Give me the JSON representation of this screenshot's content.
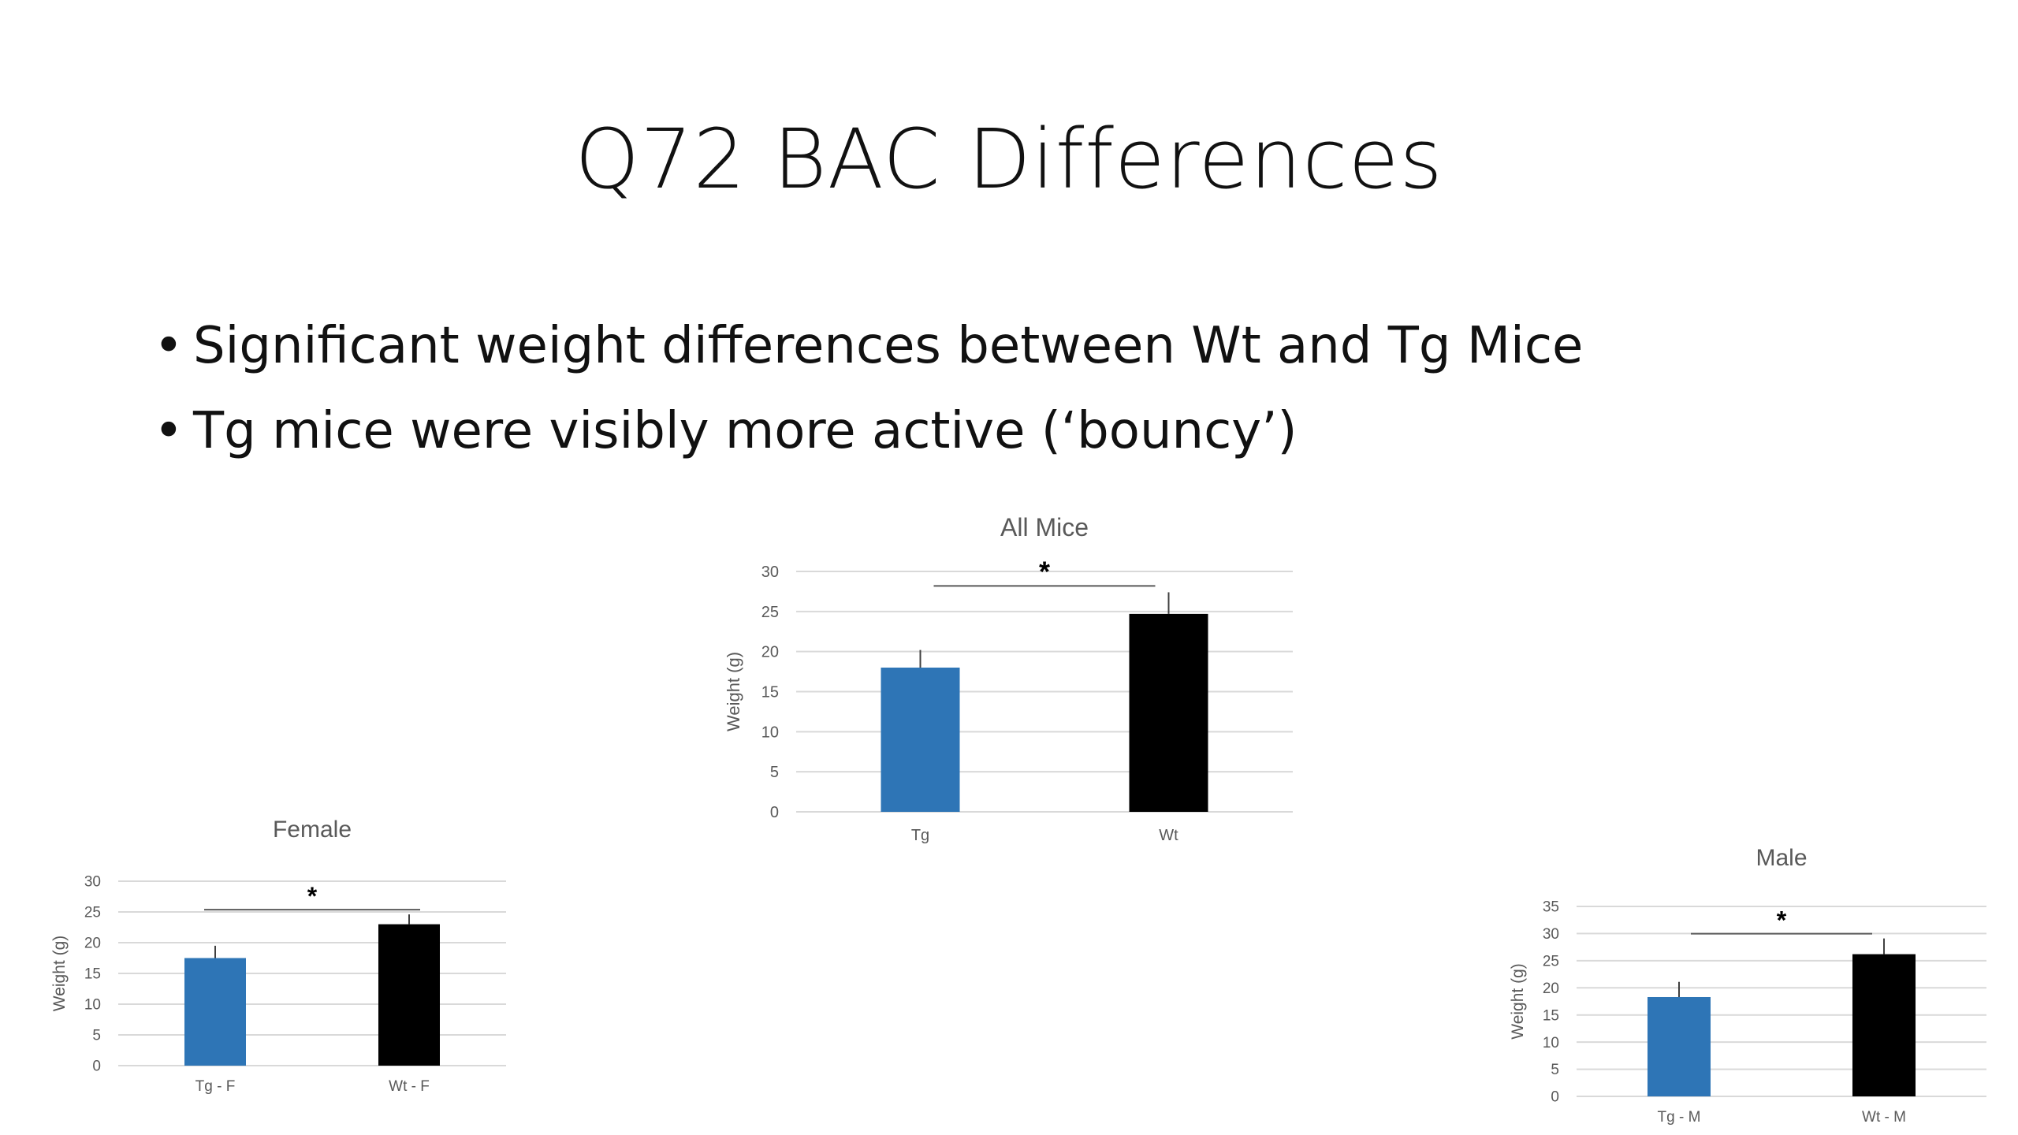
{
  "slide": {
    "title": "Q72 BAC Differences",
    "bullets": [
      "Significant weight differences between Wt and Tg Mice",
      "Tg mice were visibly more active (‘bouncy’)"
    ]
  },
  "colors": {
    "tg": "#2e75b6",
    "wt": "#000000",
    "grid": "#d9d9d9",
    "axis_text": "#595959"
  },
  "chart_data": [
    {
      "type": "bar",
      "title": "All Mice",
      "categories": [
        "Tg",
        "Wt"
      ],
      "values": [
        18,
        24.7
      ],
      "errors": [
        2.2,
        2.7
      ],
      "ylabel": "Weight (g)",
      "xlabel": "",
      "ylim": [
        0,
        30
      ],
      "yticks": [
        0,
        5,
        10,
        15,
        20,
        25,
        30
      ],
      "grid": true,
      "significance": "*"
    },
    {
      "type": "bar",
      "title": "Female",
      "categories": [
        "Tg - F",
        "Wt - F"
      ],
      "values": [
        17.5,
        23
      ],
      "errors": [
        2,
        1.6
      ],
      "ylabel": "Weight (g)",
      "xlabel": "",
      "ylim": [
        0,
        30
      ],
      "yticks": [
        0,
        5,
        10,
        15,
        20,
        25,
        30
      ],
      "grid": true,
      "significance": "*"
    },
    {
      "type": "bar",
      "title": "Male",
      "categories": [
        "Tg - M",
        "Wt - M"
      ],
      "values": [
        18.3,
        26.2
      ],
      "errors": [
        2.8,
        2.9
      ],
      "ylabel": "Weight (g)",
      "xlabel": "",
      "ylim": [
        0,
        35
      ],
      "yticks": [
        0,
        5,
        10,
        15,
        20,
        25,
        30,
        35
      ],
      "grid": true,
      "significance": "*"
    }
  ]
}
